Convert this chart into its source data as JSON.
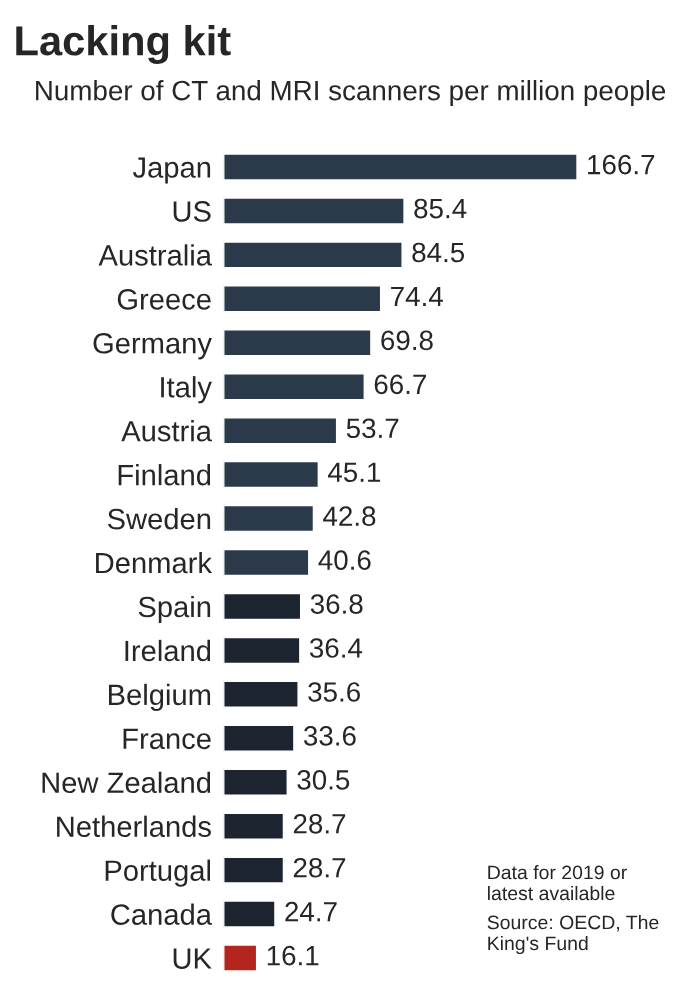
{
  "chart_data": {
    "type": "bar",
    "orientation": "horizontal",
    "title": "Lacking kit",
    "subtitle": "Number of CT and MRI scanners per million people",
    "categories": [
      "Japan",
      "US",
      "Australia",
      "Greece",
      "Germany",
      "Italy",
      "Austria",
      "Finland",
      "Sweden",
      "Denmark",
      "Spain",
      "Ireland",
      "Belgium",
      "France",
      "New Zealand",
      "Netherlands",
      "Portugal",
      "Canada",
      "UK"
    ],
    "values": [
      166.7,
      85.4,
      84.5,
      74.4,
      69.8,
      66.7,
      53.7,
      45.1,
      42.8,
      40.6,
      36.8,
      36.4,
      35.6,
      33.6,
      30.5,
      28.7,
      28.7,
      24.7,
      16.1
    ],
    "colors": [
      "#2b3a4a",
      "#2b3a4a",
      "#2b3a4a",
      "#2b3a4a",
      "#2b3a4a",
      "#2b3a4a",
      "#2b3a4a",
      "#2b3a4a",
      "#2b3a4a",
      "#2b3a4a",
      "#1c2430",
      "#1c2430",
      "#1c2430",
      "#1c2430",
      "#1c2430",
      "#1c2430",
      "#1c2430",
      "#1c2430",
      "#b3261e"
    ],
    "data_labels": true,
    "annotations": [
      "Data for 2019 or latest available",
      "Source: OECD, The King's Fund"
    ]
  }
}
